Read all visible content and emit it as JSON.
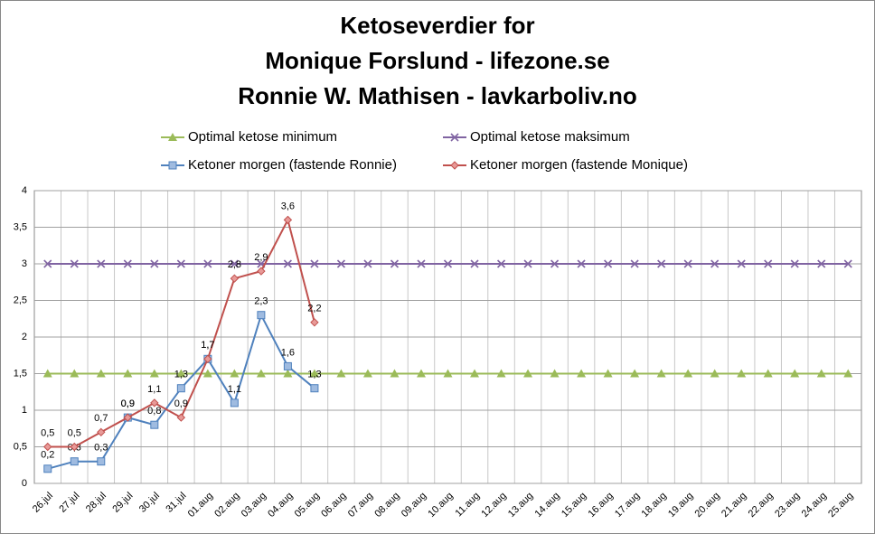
{
  "chart_data": {
    "type": "line",
    "title": [
      "Ketoseverdier for",
      "Monique Forslund - lifezone.se",
      "Ronnie W. Mathisen - lavkarboliv.no"
    ],
    "categories": [
      "26.jul",
      "27.jul",
      "28.jul",
      "29.jul",
      "30.jul",
      "31.jul",
      "01.aug",
      "02.aug",
      "03.aug",
      "04.aug",
      "05.aug",
      "06.aug",
      "07.aug",
      "08.aug",
      "09.aug",
      "10.aug",
      "11.aug",
      "12.aug",
      "13.aug",
      "14.aug",
      "15.aug",
      "16.aug",
      "17.aug",
      "18.aug",
      "19.aug",
      "20.aug",
      "21.aug",
      "22.aug",
      "23.aug",
      "24.aug",
      "25.aug"
    ],
    "series": [
      {
        "name": "Optimal ketose minimum",
        "color": "#9bbb59",
        "marker": "triangle",
        "values": [
          1.5,
          1.5,
          1.5,
          1.5,
          1.5,
          1.5,
          1.5,
          1.5,
          1.5,
          1.5,
          1.5,
          1.5,
          1.5,
          1.5,
          1.5,
          1.5,
          1.5,
          1.5,
          1.5,
          1.5,
          1.5,
          1.5,
          1.5,
          1.5,
          1.5,
          1.5,
          1.5,
          1.5,
          1.5,
          1.5,
          1.5
        ]
      },
      {
        "name": "Optimal ketose maksimum",
        "color": "#8064a2",
        "marker": "x",
        "values": [
          3,
          3,
          3,
          3,
          3,
          3,
          3,
          3,
          3,
          3,
          3,
          3,
          3,
          3,
          3,
          3,
          3,
          3,
          3,
          3,
          3,
          3,
          3,
          3,
          3,
          3,
          3,
          3,
          3,
          3,
          3
        ]
      },
      {
        "name": "Ketoner morgen (fastende Ronnie)",
        "color": "#4f81bd",
        "marker": "square",
        "values": [
          0.2,
          0.3,
          0.3,
          0.9,
          0.8,
          1.3,
          1.7,
          1.1,
          2.3,
          1.6,
          1.3,
          null,
          null,
          null,
          null,
          null,
          null,
          null,
          null,
          null,
          null,
          null,
          null,
          null,
          null,
          null,
          null,
          null,
          null,
          null,
          null
        ],
        "value_labels": [
          "0,2",
          "0,3",
          "0,3",
          "0,9",
          "0,8",
          "1,3",
          "1,7",
          "1,1",
          "2,3",
          "1,6",
          "1,3",
          null,
          null,
          null,
          null,
          null,
          null,
          null,
          null,
          null,
          null,
          null,
          null,
          null,
          null,
          null,
          null,
          null,
          null,
          null,
          null
        ]
      },
      {
        "name": "Ketoner morgen (fastende Monique)",
        "color": "#c0504d",
        "marker": "diamond",
        "values": [
          0.5,
          0.5,
          0.7,
          0.9,
          1.1,
          0.9,
          1.7,
          2.8,
          2.9,
          3.6,
          2.2,
          null,
          null,
          null,
          null,
          null,
          null,
          null,
          null,
          null,
          null,
          null,
          null,
          null,
          null,
          null,
          null,
          null,
          null,
          null,
          null
        ],
        "value_labels": [
          "0,5",
          "0,5",
          "0,7",
          "0,9",
          "1,1",
          "0,9",
          "1,7",
          "2,8",
          "2,9",
          "3,6",
          "2,2",
          null,
          null,
          null,
          null,
          null,
          null,
          null,
          null,
          null,
          null,
          null,
          null,
          null,
          null,
          null,
          null,
          null,
          null,
          null,
          null
        ]
      }
    ],
    "ylim": [
      0,
      4
    ],
    "yticks": [
      0,
      {
        "value": 0.5,
        "label": "0,5"
      },
      1,
      {
        "value": 1.5,
        "label": "1,5"
      },
      2,
      {
        "value": 2.5,
        "label": "2,5"
      },
      3,
      {
        "value": 3.5,
        "label": "3,5"
      },
      4
    ],
    "grid": true,
    "legend": "top"
  }
}
